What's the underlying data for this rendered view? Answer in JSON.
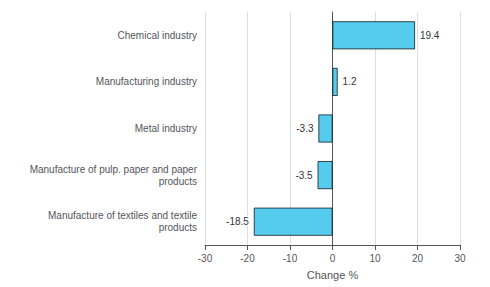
{
  "chart_data": {
    "type": "bar",
    "orientation": "horizontal",
    "categories": [
      "Chemical industry",
      "Manufacturing industry",
      "Metal industry",
      "Manufacture of pulp. paper and paper\nproducts",
      "Manufacture of textiles and textile\nproducts"
    ],
    "values": [
      19.4,
      1.2,
      -3.3,
      -3.5,
      -18.5
    ],
    "color": "#55CCEE",
    "xlabel": "Change %",
    "xlim": [
      -30,
      30
    ],
    "xticks": [
      -30,
      -20,
      -10,
      0,
      10,
      20,
      30
    ],
    "grid": true,
    "data_labels": true
  }
}
